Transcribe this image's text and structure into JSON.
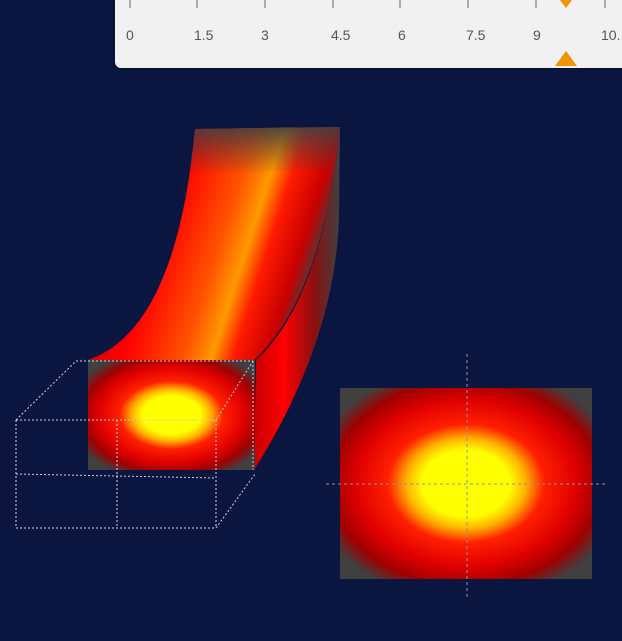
{
  "ruler": {
    "ticks": [
      "0",
      "1.5",
      "3",
      "4.5",
      "6",
      "7.5",
      "9",
      "10."
    ],
    "marker_value": 9.75,
    "marker_color": "#f29400"
  },
  "scene": {
    "background": "#0b1640",
    "heatmap_colors": [
      "#ffff00",
      "#ffb300",
      "#ff0000",
      "#c80000",
      "#404040"
    ],
    "wireframe_color": "#c8d0e0",
    "crosshair_color": "#8a94b0"
  }
}
